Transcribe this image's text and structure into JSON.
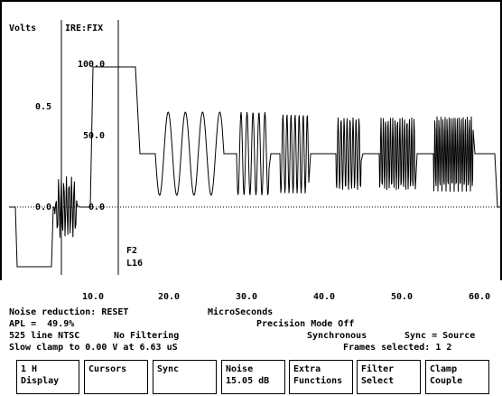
{
  "scale": {
    "volts_label": "Volts",
    "ire_label": "IRE:FIX",
    "volt_ticks": [
      {
        "value": 0.5,
        "label": "0.5"
      },
      {
        "value": 0.0,
        "label": "0.0"
      }
    ],
    "ire_ticks": [
      {
        "value": 100.0,
        "label": "100.0"
      },
      {
        "value": 50.0,
        "label": "50.0"
      },
      {
        "value": 0.0,
        "label": "0.0"
      }
    ]
  },
  "field_line": {
    "field": "F2",
    "line": "L16"
  },
  "x_axis": {
    "unit_label": "MicroSeconds",
    "ticks": [
      "10.0",
      "20.0",
      "30.0",
      "40.0",
      "50.0",
      "60.0"
    ]
  },
  "status": {
    "noise_reduction": "Noise reduction: RESET",
    "precision_mode": "Precision Mode Off",
    "apl": "APL =  49.9%",
    "line_standard": "525 line NTSC",
    "filtering": "No Filtering",
    "sync_mode": "Synchronous",
    "sync_source": "Sync = Source",
    "clamp": "Slow clamp to 0.00 V at 6.63 uS",
    "frames": "Frames selected: 1 2"
  },
  "softkeys": [
    {
      "line1": "1 H",
      "line2": "Display"
    },
    {
      "line1": "Cursors",
      "line2": ""
    },
    {
      "line1": "Sync",
      "line2": ""
    },
    {
      "line1": "Noise",
      "line2": "15.05 dB"
    },
    {
      "line1": "Extra",
      "line2": "Functions"
    },
    {
      "line1": "Filter",
      "line2": "Select"
    },
    {
      "line1": "Clamp",
      "line2": "Couple"
    }
  ],
  "colors": {
    "trace": "#000000",
    "background": "#ffffff"
  }
}
